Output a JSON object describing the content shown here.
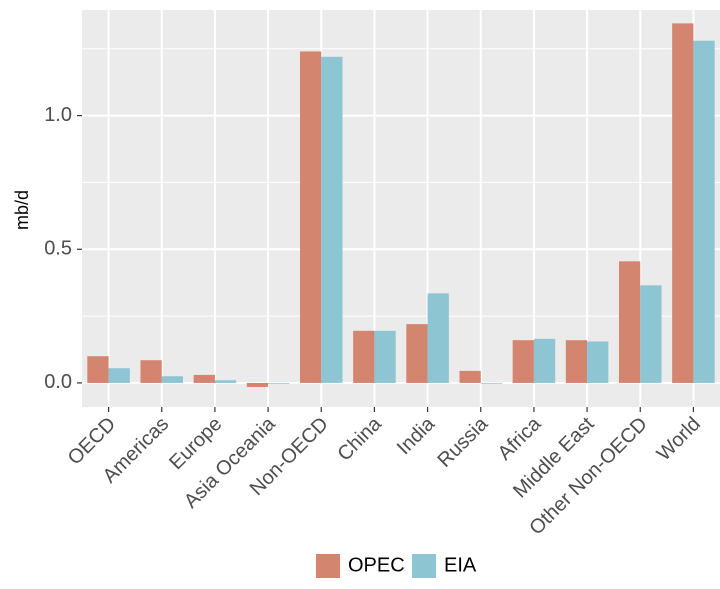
{
  "chart_data": {
    "type": "bar",
    "categories": [
      "OECD",
      "Americas",
      "Europe",
      "Asia Oceania",
      "Non-OECD",
      "China",
      "India",
      "Russia",
      "Africa",
      "Middle East",
      "Other Non-OECD",
      "World"
    ],
    "series": [
      {
        "name": "OPEC",
        "color": "#d4856f",
        "values": [
          0.1,
          0.085,
          0.03,
          -0.015,
          1.24,
          0.195,
          0.22,
          0.045,
          0.16,
          0.16,
          0.455,
          1.345
        ]
      },
      {
        "name": "EIA",
        "color": "#8dc5d3",
        "values": [
          0.055,
          0.025,
          0.01,
          0.0,
          1.22,
          0.195,
          0.335,
          0.0,
          0.165,
          0.155,
          0.365,
          1.28
        ]
      }
    ],
    "xlabel": "",
    "ylabel": "mb/d",
    "ylim": [
      -0.09,
      1.395
    ],
    "yticks": [
      0.0,
      0.5,
      1.0
    ],
    "ytick_labels": [
      "0.0",
      "0.5",
      "1.0"
    ],
    "grid": true,
    "legend_position": "bottom"
  }
}
